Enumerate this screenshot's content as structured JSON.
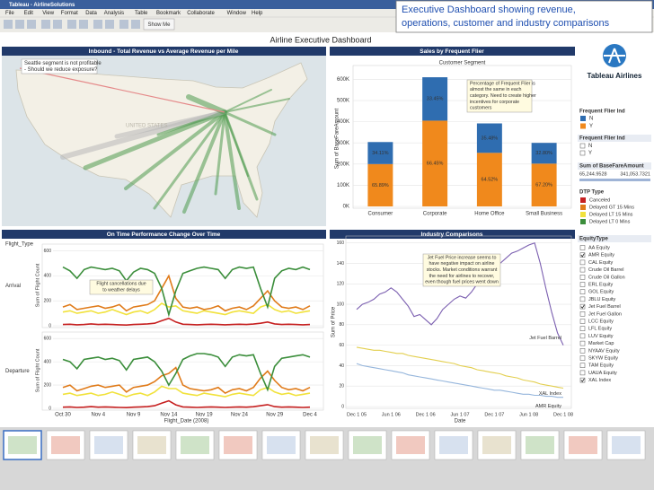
{
  "window": {
    "title": "Tableau - AirlineSolutions",
    "menu": [
      "File",
      "Edit",
      "View",
      "Format",
      "Data",
      "Analysis",
      "Table",
      "Bookmark",
      "Collaborate",
      "Window",
      "Help"
    ],
    "toolbar_button": "Show Me"
  },
  "callout": [
    "Executive Dashboard showing revenue,",
    "operations, customer and industry comparisons"
  ],
  "dashboard_title": "Airline Executive Dashboard",
  "map_panel": {
    "title": "Inbound - Total Revenue vs Average Revenue per Mile",
    "annotation": [
      "Seattle segment is not profitable",
      "- Should we reduce exposure?"
    ],
    "map_label": "UNITED STATES"
  },
  "sidebar": {
    "brand": "Tableau Airlines",
    "filter": {
      "title": "Frequent Flier Ind",
      "items": [
        "N",
        "Y"
      ]
    },
    "fare": {
      "title": "Sum of BaseFareAmount",
      "min": "65,244.9528",
      "max": "341,053.7321"
    },
    "dtp_title": "DTP Type",
    "equity": {
      "title": "EquityType",
      "items": [
        {
          "label": "AA Equity",
          "checked": false
        },
        {
          "label": "AMR Equity",
          "checked": true
        },
        {
          "label": "CAL Equity",
          "checked": false
        },
        {
          "label": "Crude Oil Barrel",
          "checked": false
        },
        {
          "label": "Crude Oil Gallon",
          "checked": false
        },
        {
          "label": "ERL Equity",
          "checked": false
        },
        {
          "label": "GOL Equity",
          "checked": false
        },
        {
          "label": "JBLU Equity",
          "checked": false
        },
        {
          "label": "Jet Fuel Barrel",
          "checked": true
        },
        {
          "label": "Jet Fuel Gallon",
          "checked": false
        },
        {
          "label": "LCC Equity",
          "checked": false
        },
        {
          "label": "LFL Equity",
          "checked": false
        },
        {
          "label": "LUV Equity",
          "checked": false
        },
        {
          "label": "Market Cap",
          "checked": false
        },
        {
          "label": "NYAAV Equity",
          "checked": false
        },
        {
          "label": "SKYW Equity",
          "checked": false
        },
        {
          "label": "TAM Equity",
          "checked": false
        },
        {
          "label": "UAUA Equity",
          "checked": false
        },
        {
          "label": "XAL Index",
          "checked": true
        }
      ]
    }
  },
  "chart_data": [
    {
      "type": "bar",
      "title": "Sales by Frequent Flier",
      "subtitle": "Customer Segment",
      "ylabel": "Sum of BaseFareAmount",
      "legend_title": "Frequent Flier Ind",
      "categories": [
        "Consumer",
        "Corporate",
        "Home Office",
        "Small Business"
      ],
      "series": [
        {
          "name": "Y",
          "color": "#f0891c",
          "values": [
            200000,
            405000,
            253000,
            202000
          ],
          "segment_labels": [
            "65.89%",
            "66.45%",
            "64.52%",
            "67.20%"
          ]
        },
        {
          "name": "N",
          "color": "#2f6db0",
          "values": [
            104000,
            205000,
            139000,
            98000
          ],
          "segment_labels": [
            "34.11%",
            "33.45%",
            "35.48%",
            "32.80%"
          ]
        }
      ],
      "ylim": [
        0,
        640000
      ],
      "yticks": [
        {
          "value": 0,
          "label": "0K"
        },
        {
          "value": 100000,
          "label": "100K"
        },
        {
          "value": 200000,
          "label": "200K"
        },
        {
          "value": 300000,
          "label": "300K"
        },
        {
          "value": 400000,
          "label": "400K"
        },
        {
          "value": 500000,
          "label": "500K"
        },
        {
          "value": 600000,
          "label": "600K"
        }
      ],
      "grid": true,
      "annotation": [
        "Percentage of Frequent Flier is",
        "almost the same in each",
        "category. Need to create higher",
        "incentives for corporate",
        "customers"
      ]
    },
    {
      "type": "line",
      "title": "On Time Performance Change Over Time",
      "legend_title": "Flight_Type",
      "ylabel": "Sum of Flight Count",
      "xlabel": "Flight_Date (2008)",
      "categories": [
        "Oct 30",
        null,
        null,
        null,
        null,
        "Nov 4",
        null,
        null,
        null,
        null,
        "Nov 9",
        null,
        null,
        null,
        null,
        "Nov 14",
        null,
        null,
        null,
        null,
        "Nov 19",
        null,
        null,
        null,
        null,
        "Nov 24",
        null,
        null,
        null,
        null,
        "Nov 29",
        null,
        null,
        null,
        null,
        "Dec 4"
      ],
      "series_legend": [
        {
          "name": "Canceled",
          "color": "#c62020"
        },
        {
          "name": "Delayed GT 15 Mins",
          "color": "#e07b1a"
        },
        {
          "name": "Delayed LT 15 Mins",
          "color": "#f1e23c"
        },
        {
          "name": "Delayed LT 0 Mins",
          "color": "#3b8e3b"
        }
      ],
      "ylim": [
        0,
        640
      ],
      "yticks": [
        0,
        200,
        400,
        600
      ],
      "grid": true,
      "annotation": [
        "Flight cancellations due",
        "to weather delays"
      ],
      "panels": [
        {
          "name": "Arrival",
          "series": [
            {
              "values": [
                10,
                12,
                8,
                10,
                15,
                10,
                12,
                10,
                8,
                6,
                10,
                12,
                15,
                20,
                40,
                60,
                30,
                12,
                10,
                8,
                10,
                12,
                10,
                8,
                10,
                12,
                10,
                14,
                20,
                30,
                15,
                10,
                12,
                10,
                8,
                10
              ]
            },
            {
              "values": [
                150,
                170,
                130,
                140,
                150,
                160,
                140,
                150,
                170,
                120,
                150,
                160,
                170,
                200,
                300,
                400,
                220,
                150,
                140,
                150,
                130,
                140,
                160,
                120,
                140,
                150,
                130,
                160,
                220,
                280,
                200,
                150,
                140,
                150,
                130,
                160
              ]
            },
            {
              "values": [
                110,
                120,
                100,
                110,
                120,
                100,
                110,
                130,
                110,
                90,
                110,
                120,
                100,
                130,
                180,
                150,
                160,
                120,
                110,
                100,
                120,
                110,
                100,
                90,
                110,
                120,
                110,
                100,
                150,
                170,
                130,
                110,
                120,
                100,
                110,
                120
              ]
            },
            {
              "values": [
                470,
                440,
                380,
                450,
                470,
                460,
                450,
                460,
                440,
                360,
                430,
                460,
                450,
                420,
                300,
                90,
                280,
                420,
                440,
                460,
                470,
                460,
                450,
                380,
                450,
                470,
                460,
                470,
                300,
                150,
                380,
                440,
                460,
                450,
                470,
                450
              ]
            }
          ]
        },
        {
          "name": "Departure",
          "series": [
            {
              "values": [
                10,
                12,
                8,
                10,
                15,
                10,
                12,
                10,
                8,
                6,
                10,
                12,
                15,
                22,
                45,
                65,
                30,
                12,
                10,
                8,
                10,
                12,
                10,
                8,
                10,
                12,
                10,
                14,
                22,
                32,
                15,
                10,
                12,
                10,
                8,
                10
              ]
            },
            {
              "values": [
                180,
                200,
                150,
                170,
                190,
                200,
                180,
                190,
                200,
                140,
                180,
                190,
                200,
                230,
                280,
                300,
                350,
                200,
                170,
                160,
                150,
                160,
                180,
                130,
                160,
                170,
                150,
                180,
                260,
                320,
                240,
                180,
                160,
                170,
                150,
                180
              ]
            },
            {
              "values": [
                120,
                130,
                110,
                120,
                130,
                110,
                120,
                140,
                120,
                100,
                120,
                130,
                110,
                140,
                190,
                170,
                170,
                130,
                120,
                110,
                130,
                120,
                110,
                100,
                120,
                130,
                120,
                110,
                160,
                180,
                140,
                120,
                130,
                110,
                120,
                130
              ]
            },
            {
              "values": [
                420,
                400,
                340,
                420,
                430,
                440,
                420,
                430,
                410,
                330,
                420,
                430,
                440,
                400,
                320,
                200,
                300,
                420,
                450,
                470,
                470,
                460,
                440,
                360,
                440,
                460,
                450,
                460,
                300,
                160,
                360,
                430,
                440,
                450,
                460,
                440
              ]
            }
          ]
        }
      ]
    },
    {
      "type": "line",
      "title": "Industry Comparisons",
      "ylabel": "Sum of Price",
      "xlabel": "Date",
      "categories": [
        "Dec 1 05",
        null,
        null,
        null,
        null,
        null,
        "Jun 1 06",
        null,
        null,
        null,
        null,
        null,
        "Dec 1 06",
        null,
        null,
        null,
        null,
        null,
        "Jun 1 07",
        null,
        null,
        null,
        null,
        null,
        "Dec 1 07",
        null,
        null,
        null,
        null,
        null,
        "Jun 1 08",
        null,
        null,
        null,
        null,
        null,
        "Dec 1 08"
      ],
      "ylim": [
        0,
        165
      ],
      "yticks": [
        0,
        20,
        40,
        60,
        80,
        100,
        120,
        140,
        160
      ],
      "grid": true,
      "annotation": [
        "Jet Fuel Price increase seems to",
        "have negative impact on airline",
        "stocks. Market conditions warrant",
        "the need for airlines to recover,",
        "even though fuel prices went down"
      ],
      "series": [
        {
          "name": "Jet Fuel Barrel",
          "color": "#7b5fb0",
          "values": [
            95,
            100,
            102,
            105,
            110,
            112,
            116,
            112,
            105,
            98,
            88,
            90,
            85,
            80,
            86,
            95,
            100,
            105,
            108,
            106,
            112,
            120,
            130,
            138,
            135,
            140,
            145,
            150,
            152,
            155,
            158,
            160,
            140,
            115,
            92,
            72,
            60
          ]
        },
        {
          "name": "XAL Index",
          "color": "#e3cf4f",
          "values": [
            58,
            57,
            56,
            55,
            55,
            54,
            53,
            52,
            52,
            50,
            49,
            48,
            47,
            46,
            45,
            44,
            43,
            42,
            40,
            39,
            38,
            36,
            35,
            34,
            33,
            32,
            30,
            29,
            28,
            26,
            25,
            24,
            22,
            21,
            20,
            19,
            18
          ]
        },
        {
          "name": "AMR Equity",
          "color": "#96b6dc",
          "values": [
            42,
            40,
            39,
            38,
            37,
            36,
            35,
            34,
            33,
            31,
            30,
            29,
            28,
            27,
            26,
            25,
            24,
            23,
            22,
            21,
            20,
            19,
            18,
            17,
            16,
            16,
            15,
            14,
            13,
            12,
            12,
            11,
            11,
            10,
            10,
            9,
            9
          ]
        }
      ]
    }
  ]
}
